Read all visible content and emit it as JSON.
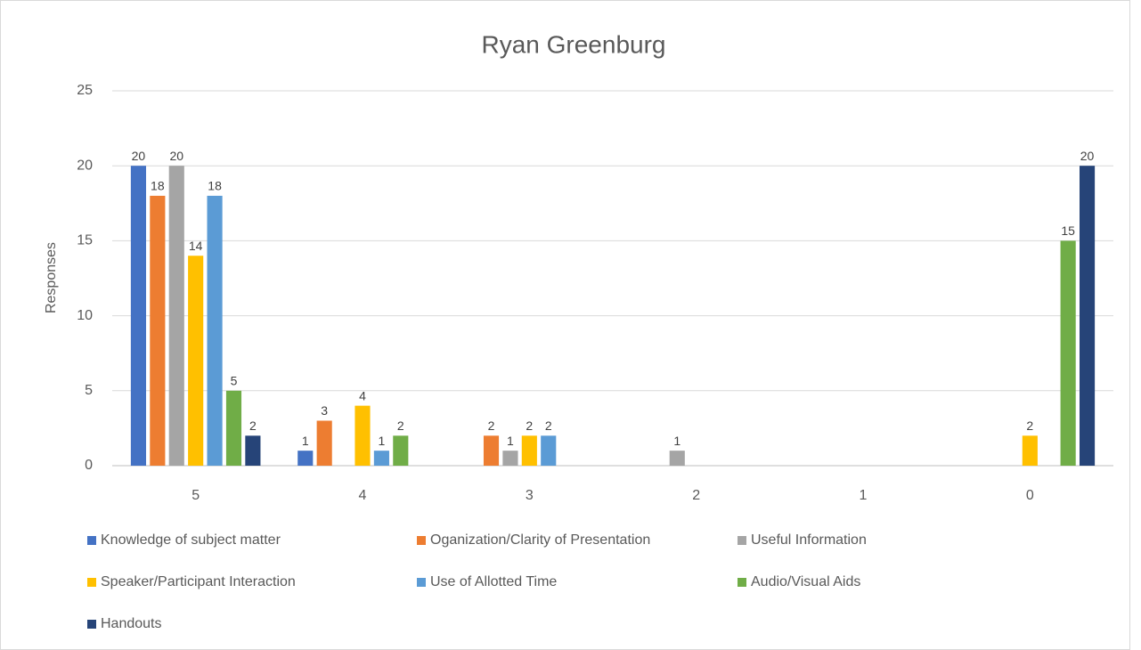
{
  "chart_data": {
    "type": "bar",
    "title": "Ryan Greenburg",
    "y_label": "Responses",
    "categories": [
      "5",
      "4",
      "3",
      "2",
      "1",
      "0"
    ],
    "series": [
      {
        "name": "Knowledge of subject matter",
        "color": "#4472c4",
        "values": [
          20,
          1,
          null,
          null,
          null,
          null
        ]
      },
      {
        "name": "Oganization/Clarity of Presentation",
        "color": "#ed7d31",
        "values": [
          18,
          3,
          2,
          null,
          null,
          null
        ]
      },
      {
        "name": "Useful Information",
        "color": "#a5a5a5",
        "values": [
          20,
          null,
          1,
          1,
          null,
          null
        ]
      },
      {
        "name": "Speaker/Participant Interaction",
        "color": "#ffc000",
        "values": [
          14,
          4,
          2,
          null,
          null,
          2
        ]
      },
      {
        "name": "Use of Allotted Time",
        "color": "#5b9bd5",
        "values": [
          18,
          1,
          2,
          null,
          null,
          null
        ]
      },
      {
        "name": "Audio/Visual Aids",
        "color": "#70ad47",
        "values": [
          5,
          2,
          null,
          null,
          null,
          15
        ]
      },
      {
        "name": "Handouts",
        "color": "#264478",
        "values": [
          2,
          null,
          null,
          null,
          null,
          20
        ]
      }
    ],
    "ylim": [
      0,
      25
    ],
    "yticks": [
      0,
      5,
      10,
      15,
      20,
      25
    ],
    "grid": true,
    "legend": "bottom"
  }
}
